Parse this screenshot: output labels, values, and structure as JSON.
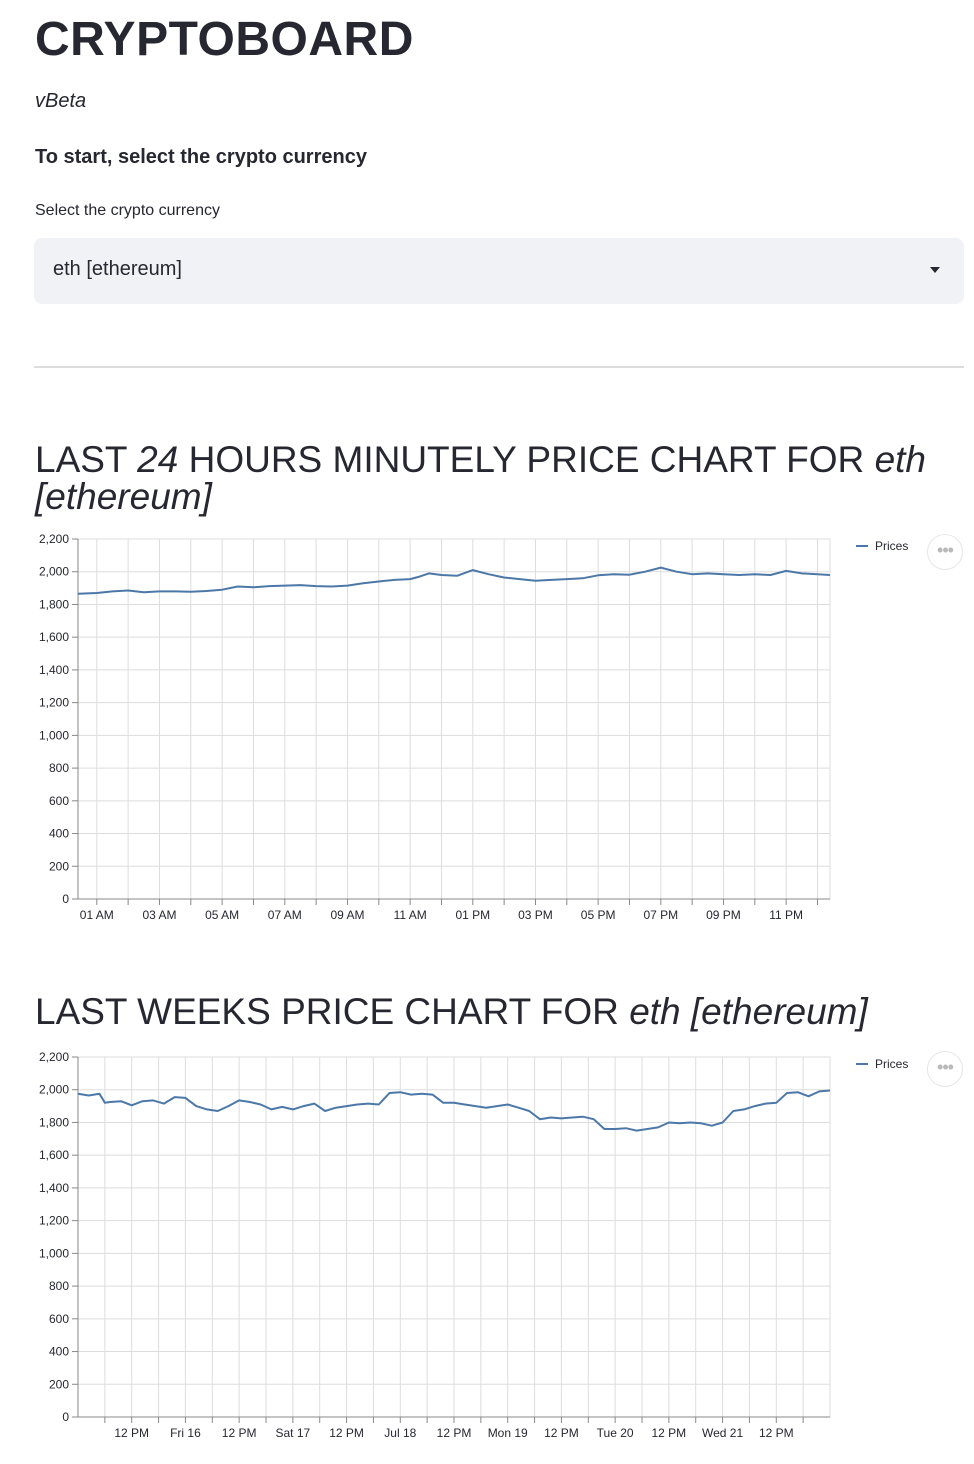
{
  "app": {
    "title": "CRYPTOBOARD",
    "version": "vBeta",
    "instructions": "To start, select the crypto currency"
  },
  "selector": {
    "label": "Select the crypto currency",
    "value": "eth [ethereum]"
  },
  "sections": [
    {
      "title_parts": [
        "LAST ",
        "24",
        " HOURS MINUTELY PRICE CHART FOR ",
        "eth [ethereum]"
      ],
      "menu_icon": "more-horizontal-icon"
    },
    {
      "title_parts": [
        "LAST WEEKS PRICE CHART FOR ",
        "eth [ethereum]"
      ],
      "menu_icon": "more-horizontal-icon"
    }
  ],
  "colors": {
    "line": "#4c78a8",
    "grid": "#dddddd",
    "axis": "#888888",
    "select_bg": "#f0f2f6"
  },
  "chart_data": [
    {
      "type": "line",
      "title": "",
      "xlabel": "",
      "ylabel": "",
      "ylim": [
        0,
        2200
      ],
      "yticks": [
        0,
        200,
        400,
        600,
        800,
        1000,
        1200,
        1400,
        1600,
        1800,
        2000,
        2200
      ],
      "ytick_labels": [
        "0",
        "200",
        "400",
        "600",
        "800",
        "1,000",
        "1,200",
        "1,400",
        "1,600",
        "1,800",
        "2,000",
        "2,200"
      ],
      "xlim": [
        0.4,
        24.4
      ],
      "xtick_labels": [
        "01 AM",
        "03 AM",
        "05 AM",
        "07 AM",
        "09 AM",
        "11 AM",
        "01 PM",
        "03 PM",
        "05 PM",
        "07 PM",
        "09 PM",
        "11 PM"
      ],
      "xtick_values": [
        1,
        3,
        5,
        7,
        9,
        11,
        13,
        15,
        17,
        19,
        21,
        23
      ],
      "grid": true,
      "legend": "top-right",
      "series": [
        {
          "name": "Prices",
          "x": [
            0.4,
            1.0,
            1.5,
            2.0,
            2.5,
            3.0,
            3.5,
            4.0,
            4.5,
            5.0,
            5.5,
            6.0,
            6.5,
            7.0,
            7.5,
            8.0,
            8.5,
            9.0,
            9.5,
            10.0,
            10.5,
            11.0,
            11.3,
            11.6,
            12.0,
            12.5,
            13.0,
            13.5,
            14.0,
            14.5,
            15.0,
            15.5,
            16.0,
            16.5,
            17.0,
            17.5,
            18.0,
            18.5,
            19.0,
            19.5,
            20.0,
            20.5,
            21.0,
            21.5,
            22.0,
            22.5,
            23.0,
            23.5,
            24.0,
            24.4
          ],
          "values": [
            1865,
            1870,
            1880,
            1885,
            1875,
            1880,
            1880,
            1878,
            1882,
            1890,
            1910,
            1905,
            1912,
            1915,
            1918,
            1912,
            1910,
            1915,
            1930,
            1940,
            1950,
            1955,
            1970,
            1990,
            1980,
            1975,
            2010,
            1985,
            1965,
            1955,
            1945,
            1950,
            1955,
            1960,
            1978,
            1985,
            1982,
            2000,
            2025,
            2000,
            1985,
            1990,
            1985,
            1980,
            1985,
            1980,
            2005,
            1990,
            1985,
            1980
          ]
        }
      ]
    },
    {
      "type": "line",
      "title": "",
      "xlabel": "",
      "ylabel": "",
      "ylim": [
        0,
        2200
      ],
      "yticks": [
        0,
        200,
        400,
        600,
        800,
        1000,
        1200,
        1400,
        1600,
        1800,
        2000,
        2200
      ],
      "ytick_labels": [
        "0",
        "200",
        "400",
        "600",
        "800",
        "1,000",
        "1,200",
        "1,400",
        "1,600",
        "1,800",
        "2,000",
        "2,200"
      ],
      "xlim": [
        0,
        7
      ],
      "xtick_labels": [
        "12 PM",
        "Fri 16",
        "12 PM",
        "Sat 17",
        "12 PM",
        "Jul 18",
        "12 PM",
        "Mon 19",
        "12 PM",
        "Tue 20",
        "12 PM",
        "Wed 21",
        "12 PM"
      ],
      "xtick_values": [
        0.5,
        1.0,
        1.5,
        2.0,
        2.5,
        3.0,
        3.5,
        4.0,
        4.5,
        5.0,
        5.5,
        6.0,
        6.5
      ],
      "grid": true,
      "legend": "top-right",
      "series": [
        {
          "name": "Prices",
          "x": [
            0.0,
            0.1,
            0.2,
            0.25,
            0.3,
            0.4,
            0.5,
            0.6,
            0.7,
            0.8,
            0.9,
            1.0,
            1.1,
            1.2,
            1.3,
            1.4,
            1.5,
            1.6,
            1.7,
            1.8,
            1.9,
            2.0,
            2.1,
            2.2,
            2.3,
            2.4,
            2.5,
            2.6,
            2.7,
            2.8,
            2.9,
            3.0,
            3.1,
            3.2,
            3.3,
            3.4,
            3.5,
            3.6,
            3.7,
            3.8,
            3.9,
            4.0,
            4.1,
            4.2,
            4.3,
            4.4,
            4.5,
            4.6,
            4.7,
            4.8,
            4.9,
            5.0,
            5.1,
            5.2,
            5.3,
            5.4,
            5.5,
            5.6,
            5.7,
            5.8,
            5.9,
            6.0,
            6.1,
            6.2,
            6.3,
            6.4,
            6.5,
            6.6,
            6.7,
            6.8,
            6.9,
            7.0
          ],
          "values": [
            1975,
            1965,
            1975,
            1920,
            1925,
            1930,
            1905,
            1930,
            1935,
            1915,
            1955,
            1950,
            1900,
            1880,
            1870,
            1900,
            1935,
            1925,
            1910,
            1880,
            1895,
            1880,
            1900,
            1915,
            1870,
            1890,
            1900,
            1910,
            1915,
            1910,
            1980,
            1985,
            1970,
            1975,
            1970,
            1920,
            1920,
            1910,
            1900,
            1890,
            1900,
            1910,
            1890,
            1870,
            1820,
            1830,
            1825,
            1830,
            1835,
            1820,
            1760,
            1760,
            1765,
            1750,
            1760,
            1770,
            1800,
            1795,
            1800,
            1795,
            1780,
            1800,
            1870,
            1880,
            1900,
            1915,
            1920,
            1980,
            1985,
            1960,
            1990,
            1995
          ]
        }
      ]
    }
  ]
}
